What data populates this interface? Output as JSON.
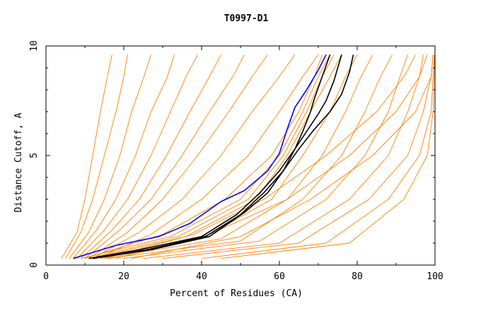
{
  "chart_data": {
    "type": "line",
    "title": "T0997-D1",
    "xlabel": "Percent of Residues (CA)",
    "ylabel": "Distance Cutoff, A",
    "xlim": [
      0,
      100
    ],
    "ylim": [
      0,
      10
    ],
    "x_ticks": [
      "0",
      "20",
      "40",
      "60",
      "80",
      "100"
    ],
    "y_ticks": [
      "0",
      "5",
      "10"
    ],
    "grid": false,
    "colors": {
      "background": "#ffffff",
      "axis": "#000000",
      "other_models": "#ff8000",
      "highlight": "#0000ff",
      "reference": "#000000"
    },
    "series": [
      {
        "color": "#ff8000",
        "x": [
          4,
          8,
          10,
          12,
          14,
          16,
          17
        ],
        "y": [
          0.3,
          1.5,
          3,
          5,
          7,
          8.8,
          9.6
        ]
      },
      {
        "color": "#ff8000",
        "x": [
          5,
          9,
          12,
          15,
          18,
          20,
          21
        ],
        "y": [
          0.3,
          1.5,
          3,
          5,
          7,
          8.6,
          9.6
        ]
      },
      {
        "color": "#ff8000",
        "x": [
          6,
          11,
          15,
          19,
          22,
          25,
          27
        ],
        "y": [
          0.3,
          1.5,
          3,
          5,
          7,
          8.5,
          9.6
        ]
      },
      {
        "color": "#ff8000",
        "x": [
          7,
          13,
          18,
          23,
          27,
          31,
          33
        ],
        "y": [
          0.3,
          1.6,
          3,
          5,
          7,
          8.5,
          9.6
        ]
      },
      {
        "color": "#ff8000",
        "x": [
          8,
          15,
          21,
          27,
          32,
          36,
          39
        ],
        "y": [
          0.3,
          1.6,
          3,
          5,
          7,
          8.6,
          9.6
        ]
      },
      {
        "color": "#ff8000",
        "x": [
          9,
          17,
          24,
          31,
          37,
          42,
          45
        ],
        "y": [
          0.3,
          1.6,
          3,
          5,
          7,
          8.6,
          9.6
        ]
      },
      {
        "color": "#ff8000",
        "x": [
          10,
          19,
          27,
          35,
          42,
          48,
          51
        ],
        "y": [
          0.3,
          1.6,
          3,
          5,
          7,
          8.6,
          9.6
        ]
      },
      {
        "color": "#ff8000",
        "x": [
          11,
          21,
          30,
          39,
          47,
          53,
          57
        ],
        "y": [
          0.3,
          1.5,
          3,
          5,
          7,
          8.6,
          9.6
        ]
      },
      {
        "color": "#ff8000",
        "x": [
          12,
          24,
          35,
          45,
          53,
          60,
          64
        ],
        "y": [
          0.3,
          1.5,
          3,
          5,
          7,
          8.6,
          9.6
        ]
      },
      {
        "color": "#ff8000",
        "x": [
          13,
          27,
          40,
          52,
          60,
          66,
          70
        ],
        "y": [
          0.3,
          1.4,
          3,
          5,
          7,
          8.6,
          9.6
        ]
      },
      {
        "color": "#ff8000",
        "x": [
          10,
          30,
          46,
          58,
          65,
          69,
          71
        ],
        "y": [
          0.3,
          1.4,
          3,
          5,
          7,
          8.6,
          9.6
        ]
      },
      {
        "color": "#ff8000",
        "x": [
          9,
          32,
          50,
          60,
          66,
          70,
          73
        ],
        "y": [
          0.3,
          1.3,
          3,
          5,
          7,
          8.6,
          9.6
        ]
      },
      {
        "color": "#ff8000",
        "x": [
          11,
          34,
          52,
          61,
          67,
          71,
          74
        ],
        "y": [
          0.3,
          1.3,
          3,
          5,
          7,
          8.6,
          9.6
        ]
      },
      {
        "color": "#ff8000",
        "x": [
          12,
          36,
          54,
          62,
          68,
          73,
          76
        ],
        "y": [
          0.3,
          1.3,
          3,
          5,
          7,
          8.6,
          9.6
        ]
      },
      {
        "color": "#ff8000",
        "x": [
          14,
          40,
          58,
          66,
          73,
          77,
          80
        ],
        "y": [
          0.3,
          1.2,
          3,
          5,
          7,
          8.6,
          9.6
        ]
      },
      {
        "color": "#ff8000",
        "x": [
          15,
          45,
          62,
          71,
          77,
          81,
          84
        ],
        "y": [
          0.3,
          1.2,
          3,
          5,
          7,
          8.6,
          9.6
        ]
      },
      {
        "color": "#ff8000",
        "x": [
          16,
          50,
          66,
          76,
          82,
          86,
          89
        ],
        "y": [
          0.3,
          1.1,
          3,
          5,
          7,
          8.6,
          9.6
        ]
      },
      {
        "color": "#ff8000",
        "x": [
          20,
          55,
          72,
          82,
          88,
          91,
          93
        ],
        "y": [
          0.3,
          1.1,
          3,
          5,
          7,
          8.6,
          9.6
        ]
      },
      {
        "color": "#ff8000",
        "x": [
          25,
          60,
          78,
          88,
          93,
          96,
          97
        ],
        "y": [
          0.3,
          1.0,
          3,
          5,
          7,
          8.6,
          9.6
        ]
      },
      {
        "color": "#ff8000",
        "x": [
          30,
          65,
          83,
          93,
          97,
          99,
          99.5
        ],
        "y": [
          0.3,
          1.0,
          3,
          5,
          7,
          8.6,
          9.6
        ]
      },
      {
        "color": "#ff8000",
        "x": [
          40,
          72,
          88,
          96,
          99,
          99.5,
          99.8
        ],
        "y": [
          0.3,
          1.0,
          3,
          5,
          7,
          8.6,
          9.6
        ]
      },
      {
        "color": "#ff8000",
        "x": [
          45,
          78,
          92,
          98,
          99.5,
          99.8,
          99.9
        ],
        "y": [
          0.3,
          1.0,
          3,
          5,
          7,
          8.6,
          9.6
        ]
      },
      {
        "color": "#ff8000",
        "x": [
          22,
          50,
          68,
          84,
          95,
          99,
          99.5
        ],
        "y": [
          0.3,
          1.3,
          3,
          5,
          7,
          8.6,
          9.6
        ]
      },
      {
        "color": "#ff8000",
        "x": [
          18,
          42,
          62,
          78,
          90,
          96,
          98
        ],
        "y": [
          0.3,
          1.4,
          3,
          5,
          7,
          8.6,
          9.6
        ]
      },
      {
        "color": "#ff8000",
        "x": [
          15,
          38,
          56,
          72,
          85,
          92,
          95
        ],
        "y": [
          0.3,
          1.4,
          3,
          5,
          7,
          8.6,
          9.6
        ]
      },
      {
        "name": "",
        "color": "#0000ff",
        "x": [
          7,
          18,
          29,
          37,
          41,
          45,
          51,
          57,
          60,
          62,
          64,
          67,
          70,
          72
        ],
        "y": [
          0.3,
          0.9,
          1.3,
          1.9,
          2.4,
          2.9,
          3.4,
          4.3,
          5.1,
          6.2,
          7.2,
          8.0,
          8.9,
          9.6
        ]
      },
      {
        "name": "",
        "color": "#000000",
        "x": [
          11,
          24,
          40,
          49,
          55,
          60,
          64,
          66,
          68,
          69,
          71,
          73
        ],
        "y": [
          0.3,
          0.7,
          1.3,
          2.3,
          3.3,
          4.3,
          5.3,
          6.1,
          7.0,
          7.6,
          8.6,
          9.6
        ]
      },
      {
        "name": "",
        "color": "#000000",
        "x": [
          12,
          26,
          41,
          50,
          56,
          61,
          64,
          67,
          70,
          72,
          74,
          76
        ],
        "y": [
          0.3,
          0.7,
          1.3,
          2.3,
          3.3,
          4.3,
          5.3,
          6.1,
          6.9,
          7.5,
          8.4,
          9.6
        ]
      },
      {
        "name": "",
        "color": "#000000",
        "x": [
          12,
          27,
          42,
          51,
          57,
          61,
          65,
          69,
          73,
          76,
          78,
          79
        ],
        "y": [
          0.3,
          0.7,
          1.3,
          2.4,
          3.3,
          4.3,
          5.3,
          6.2,
          7.0,
          7.8,
          8.8,
          9.6
        ]
      }
    ]
  }
}
